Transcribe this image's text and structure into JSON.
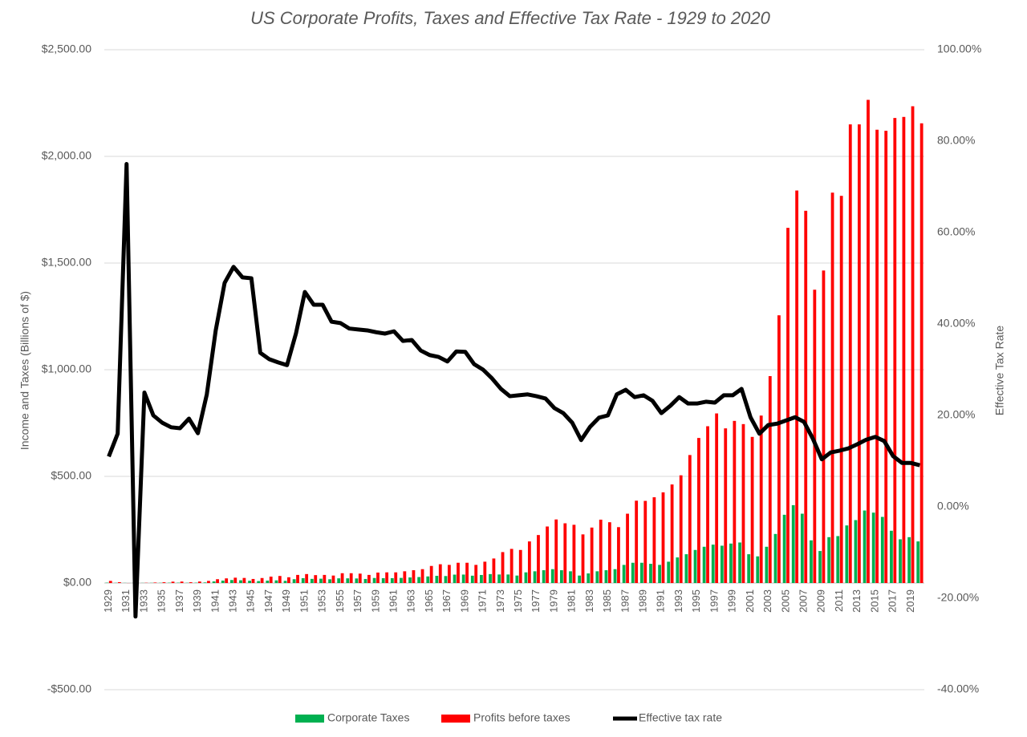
{
  "chart_data": {
    "type": "bar",
    "title": "US Corporate Profits, Taxes and Effective Tax Rate - 1929 to 2020",
    "y_label": "Income and Taxes (Billions of $)",
    "y2_label": "Effective Tax Rate",
    "categories": [
      "1929",
      null,
      "1931",
      null,
      "1933",
      null,
      "1935",
      null,
      "1937",
      null,
      "1939",
      null,
      "1941",
      null,
      "1943",
      null,
      "1945",
      null,
      "1947",
      null,
      "1949",
      null,
      "1951",
      null,
      "1953",
      null,
      "1955",
      null,
      "1957",
      null,
      "1959",
      null,
      "1961",
      null,
      "1963",
      null,
      "1965",
      null,
      "1967",
      null,
      "1969",
      null,
      "1971",
      null,
      "1973",
      null,
      "1975",
      null,
      "1977",
      null,
      "1979",
      null,
      "1981",
      null,
      "1983",
      null,
      "1985",
      null,
      "1987",
      null,
      "1989",
      null,
      "1991",
      null,
      "1993",
      null,
      "1995",
      null,
      "1997",
      null,
      "1999",
      null,
      "2001",
      null,
      "2003",
      null,
      "2005",
      null,
      "2007",
      null,
      "2009",
      null,
      "2011",
      null,
      "2013",
      null,
      "2015",
      null,
      "2017",
      null,
      "2019",
      null
    ],
    "ylim": [
      -500,
      2500
    ],
    "yticks": [
      {
        "value": -500,
        "label": "-$500.00"
      },
      {
        "value": 0,
        "label": "$0.00"
      },
      {
        "value": 500,
        "label": "$500.00"
      },
      {
        "value": 1000,
        "label": "$1,000.00"
      },
      {
        "value": 1500,
        "label": "$1,500.00"
      },
      {
        "value": 2000,
        "label": "$2,000.00"
      },
      {
        "value": 2500,
        "label": "$2,500.00"
      }
    ],
    "y2lim": [
      -40,
      100
    ],
    "y2ticks": [
      {
        "value": -40,
        "label": "-40.00%"
      },
      {
        "value": -20,
        "label": "-20.00%"
      },
      {
        "value": 0,
        "label": "0.00%"
      },
      {
        "value": 20,
        "label": "20.00%"
      },
      {
        "value": 40,
        "label": "40.00%"
      },
      {
        "value": 60,
        "label": "60.00%"
      },
      {
        "value": 80,
        "label": "80.00%"
      },
      {
        "value": 100,
        "label": "100.00%"
      }
    ],
    "grid": true,
    "legend": "bottom",
    "series": [
      {
        "name": "Corporate Taxes",
        "type": "bar",
        "color": "#00b050",
        "values": [
          1.4,
          0.8,
          0.5,
          0.4,
          0.5,
          0.7,
          0.9,
          1.4,
          1.5,
          1.0,
          1.4,
          2.6,
          7.6,
          11.4,
          14.1,
          12.9,
          10.7,
          9.1,
          11.3,
          12.4,
          10.2,
          17.9,
          22.8,
          19.4,
          20.3,
          17.6,
          22,
          22,
          21.4,
          19,
          23.6,
          22.7,
          22.8,
          24,
          26.2,
          28,
          30.9,
          33.7,
          32.7,
          39.4,
          39.7,
          34.4,
          37.7,
          41.9,
          40,
          40,
          35,
          50,
          55,
          60,
          65,
          60,
          55,
          35,
          45,
          55,
          60,
          65,
          85,
          95,
          95,
          90,
          85,
          100,
          120,
          135,
          155,
          170,
          180,
          175,
          185,
          190,
          135,
          125,
          170,
          230,
          320,
          365,
          325,
          200,
          150,
          215,
          220,
          270,
          295,
          340,
          330,
          310,
          245,
          205,
          215,
          195
        ]
      },
      {
        "name": "Profits before taxes",
        "type": "bar",
        "color": "#ff0000",
        "values": [
          10,
          4,
          -0.4,
          -2.3,
          1,
          2.3,
          3.6,
          6.4,
          6.8,
          3.6,
          7,
          10,
          17.9,
          21.8,
          25,
          23.8,
          19,
          23.4,
          30,
          33,
          27,
          38,
          42,
          37,
          38,
          35,
          46,
          46,
          44,
          38,
          49,
          50,
          50,
          55,
          60,
          65,
          80,
          88,
          85,
          95,
          95,
          85,
          100,
          115,
          145,
          160,
          155,
          195,
          225,
          265,
          298,
          280,
          273,
          228,
          260,
          297,
          285,
          262,
          325,
          386,
          385,
          402,
          425,
          462,
          505,
          600,
          680,
          735,
          795,
          725,
          760,
          745,
          685,
          785,
          970,
          1255,
          1665,
          1840,
          1745,
          1375,
          1465,
          1830,
          1815,
          2150,
          2150,
          2265,
          2125,
          2120,
          2180,
          2185,
          2235,
          2155
        ]
      },
      {
        "name": "Effective tax rate",
        "type": "line",
        "axis": "y2",
        "color": "#000000",
        "values": [
          11,
          16,
          75,
          -24,
          25,
          20,
          18.4,
          17.4,
          17.2,
          19.3,
          16.1,
          24.6,
          38.6,
          49,
          52.5,
          50.2,
          50,
          33.7,
          32.3,
          31.6,
          31,
          37.9,
          47,
          44.2,
          44.2,
          40.5,
          40.2,
          39,
          38.8,
          38.6,
          38.2,
          37.9,
          38.4,
          36.3,
          36.5,
          34.2,
          33.2,
          32.8,
          31.8,
          34,
          33.9,
          31.2,
          30,
          28.1,
          25.8,
          24.2,
          24.4,
          24.6,
          24.2,
          23.7,
          21.6,
          20.5,
          18.4,
          14.6,
          17.5,
          19.5,
          20,
          24.6,
          25.6,
          24,
          24.4,
          23.2,
          20.5,
          22.1,
          24,
          22.6,
          22.6,
          23,
          22.8,
          24.4,
          24.4,
          25.8,
          19.6,
          16,
          17.9,
          18.2,
          18.9,
          19.6,
          18.6,
          14.9,
          10.4,
          11.9,
          12.3,
          12.8,
          13.7,
          14.7,
          15.3,
          14.4,
          11.1,
          9.6,
          9.6,
          9.1
        ]
      }
    ]
  }
}
